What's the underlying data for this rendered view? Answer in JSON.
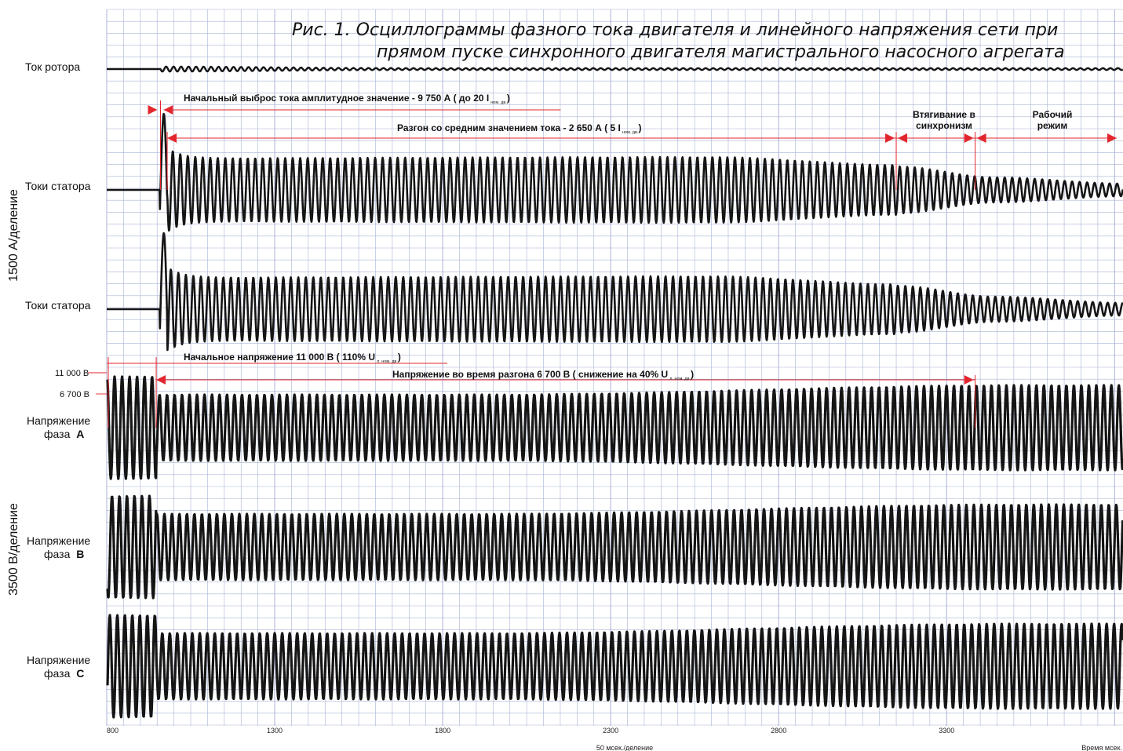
{
  "figure": {
    "title_line1": "Рис. 1.   Осциллограммы фазного тока двигателя и линейного напряжения сети при",
    "title_line2": "прямом пуске синхронного двигателя магистрального насосного агрегата"
  },
  "axis": {
    "y_current_label": "1500 А/деление",
    "y_voltage_label": "3500 В/деление",
    "x_div_label": "50 мсек./деление",
    "x_label": "Время мсек."
  },
  "channels": {
    "rotor_label": "Ток ротора",
    "stator1_label": "Токи статора",
    "stator2_label": "Токи статора",
    "va_line1": "Напряжение",
    "va_line2": "фаза",
    "va_letter": "А",
    "vb_line1": "Напряжение",
    "vb_line2": "фаза",
    "vb_letter": "В",
    "vc_line1": "Напряжение",
    "vc_line2": "фаза",
    "vc_letter": "С"
  },
  "voltage_levels": {
    "v11000": "11 000 В",
    "v6700": "6 700 В"
  },
  "annotations": {
    "inrush_main": "Начальный выброс тока амплитудное значение - 9 750 А ( до 20 I",
    "inrush_sub": "ном. дв.",
    "inrush_end": ")",
    "accel_main": "Разгон со средним значением тока - 2 650 А ( 5 I",
    "accel_sub": "ном. дв.",
    "accel_end": ")",
    "sync_line1": "Втягивание в",
    "sync_line2": "синхронизм",
    "work_line1": "Рабочий",
    "work_line2": "режим",
    "vinit_main": "Начальное напряжение 11 000 В ( 110% U",
    "vinit_sub": "л. ном. дв.",
    "vinit_end": ")",
    "vaccel_main": "Напряжение во время разгона 6 700 В ( снижение на 40% U",
    "vaccel_sub": "л. ном. дв.",
    "vaccel_end": ")"
  },
  "chart_data": {
    "type": "line",
    "x_unit": "мсек.",
    "x_ticks": [
      800,
      1300,
      1800,
      2300,
      2800,
      3300
    ],
    "xlim": [
      800,
      3825
    ],
    "grid": true,
    "event_times_ms": {
      "inrush_start": 960,
      "accel_start": 980,
      "sync_start": 3150,
      "work_start": 3385,
      "end": 3825
    },
    "series": [
      {
        "name": "Ток ротора",
        "values_note_free": true
      },
      {
        "name": "Токи статора"
      },
      {
        "name": "Токи статора"
      },
      {
        "name": "Напряжение фаза А"
      },
      {
        "name": "Напряжение фаза В"
      },
      {
        "name": "Напряжение фаза С"
      }
    ],
    "current_values_A": {
      "inrush_peak": 9750,
      "accel_mean": 2650
    },
    "voltage_values_V": {
      "initial": 11000,
      "during_accel": 6700
    }
  },
  "colors": {
    "grid": "#a9b4d6",
    "trace": "#151515",
    "accent": "#e3262e"
  }
}
